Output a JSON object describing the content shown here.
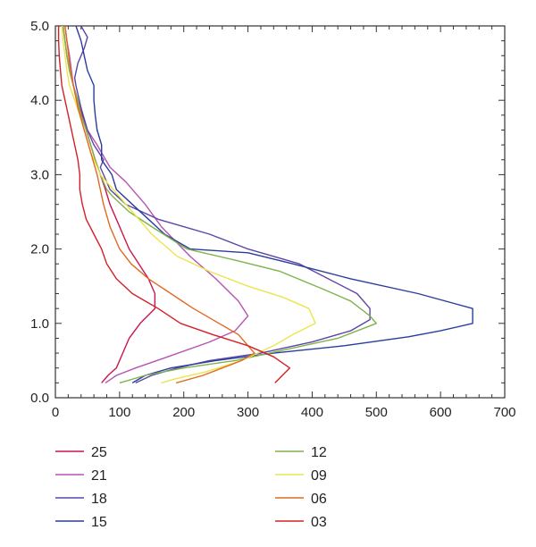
{
  "chart_data": {
    "type": "line",
    "title": "",
    "xlabel": "",
    "ylabel": "",
    "xlim": [
      0,
      700
    ],
    "ylim": [
      0,
      5
    ],
    "xticks": [
      0,
      100,
      200,
      300,
      400,
      500,
      600,
      700
    ],
    "yticks": [
      0.0,
      1.0,
      2.0,
      3.0,
      4.0,
      5.0
    ],
    "xtick_labels": [
      "0",
      "100",
      "200",
      "300",
      "400",
      "500",
      "600",
      "700"
    ],
    "ytick_labels": [
      "0.0",
      "1.0",
      "2.0",
      "3.0",
      "4.0",
      "5.0"
    ],
    "grid": false,
    "legend_position": "bottom",
    "series": [
      {
        "name": "25",
        "color": "#c8174e",
        "points": [
          [
            72,
            0.2
          ],
          [
            82,
            0.3
          ],
          [
            95,
            0.4
          ],
          [
            105,
            0.6
          ],
          [
            115,
            0.8
          ],
          [
            132,
            1.0
          ],
          [
            155,
            1.2
          ],
          [
            155,
            1.4
          ],
          [
            145,
            1.6
          ],
          [
            130,
            1.8
          ],
          [
            115,
            2.0
          ],
          [
            95,
            2.4
          ],
          [
            85,
            2.6
          ],
          [
            78,
            2.8
          ],
          [
            70,
            3.0
          ],
          [
            62,
            3.2
          ],
          [
            55,
            3.4
          ],
          [
            48,
            3.6
          ],
          [
            42,
            3.8
          ],
          [
            35,
            4.0
          ],
          [
            28,
            4.2
          ],
          [
            22,
            4.4
          ],
          [
            18,
            4.6
          ],
          [
            15,
            4.8
          ],
          [
            12,
            5.0
          ]
        ]
      },
      {
        "name": "21",
        "color": "#b653b2",
        "points": [
          [
            78,
            0.2
          ],
          [
            95,
            0.3
          ],
          [
            125,
            0.4
          ],
          [
            175,
            0.55
          ],
          [
            240,
            0.75
          ],
          [
            280,
            0.9
          ],
          [
            300,
            1.1
          ],
          [
            285,
            1.3
          ],
          [
            250,
            1.6
          ],
          [
            210,
            1.9
          ],
          [
            165,
            2.3
          ],
          [
            140,
            2.6
          ],
          [
            110,
            2.9
          ],
          [
            85,
            3.1
          ],
          [
            65,
            3.4
          ],
          [
            50,
            3.6
          ],
          [
            40,
            3.8
          ],
          [
            28,
            4.2
          ],
          [
            22,
            4.6
          ],
          [
            18,
            4.8
          ],
          [
            15,
            5.0
          ]
        ]
      },
      {
        "name": "18",
        "color": "#5c45a8",
        "points": [
          [
            125,
            0.2
          ],
          [
            150,
            0.3
          ],
          [
            190,
            0.4
          ],
          [
            240,
            0.5
          ],
          [
            320,
            0.6
          ],
          [
            400,
            0.75
          ],
          [
            460,
            0.9
          ],
          [
            490,
            1.05
          ],
          [
            490,
            1.2
          ],
          [
            470,
            1.4
          ],
          [
            380,
            1.8
          ],
          [
            300,
            2.0
          ],
          [
            240,
            2.2
          ],
          [
            160,
            2.4
          ],
          [
            110,
            2.6
          ],
          [
            85,
            2.8
          ],
          [
            75,
            3.0
          ],
          [
            70,
            3.1
          ],
          [
            75,
            3.2
          ],
          [
            60,
            3.4
          ],
          [
            50,
            3.6
          ],
          [
            40,
            3.9
          ],
          [
            32,
            4.2
          ],
          [
            30,
            4.3
          ],
          [
            35,
            4.5
          ],
          [
            45,
            4.7
          ],
          [
            50,
            4.85
          ],
          [
            40,
            5.0
          ]
        ]
      },
      {
        "name": "15",
        "color": "#2a3d9c",
        "points": [
          [
            120,
            0.2
          ],
          [
            140,
            0.3
          ],
          [
            180,
            0.4
          ],
          [
            250,
            0.5
          ],
          [
            340,
            0.6
          ],
          [
            450,
            0.7
          ],
          [
            550,
            0.82
          ],
          [
            600,
            0.9
          ],
          [
            650,
            1.0
          ],
          [
            650,
            1.2
          ],
          [
            565,
            1.4
          ],
          [
            460,
            1.6
          ],
          [
            370,
            1.8
          ],
          [
            300,
            1.95
          ],
          [
            210,
            2.0
          ],
          [
            170,
            2.2
          ],
          [
            145,
            2.4
          ],
          [
            120,
            2.6
          ],
          [
            95,
            2.8
          ],
          [
            88,
            3.0
          ],
          [
            72,
            3.2
          ],
          [
            72,
            3.4
          ],
          [
            65,
            3.6
          ],
          [
            62,
            3.8
          ],
          [
            60,
            4.0
          ],
          [
            60,
            4.2
          ],
          [
            50,
            4.4
          ],
          [
            45,
            4.6
          ],
          [
            40,
            4.8
          ],
          [
            32,
            5.0
          ]
        ]
      },
      {
        "name": "12",
        "color": "#7fb24a",
        "points": [
          [
            100,
            0.2
          ],
          [
            140,
            0.3
          ],
          [
            200,
            0.4
          ],
          [
            280,
            0.5
          ],
          [
            360,
            0.65
          ],
          [
            440,
            0.8
          ],
          [
            500,
            1.0
          ],
          [
            490,
            1.1
          ],
          [
            460,
            1.3
          ],
          [
            420,
            1.45
          ],
          [
            350,
            1.7
          ],
          [
            280,
            1.85
          ],
          [
            205,
            2.0
          ],
          [
            150,
            2.3
          ],
          [
            115,
            2.5
          ],
          [
            90,
            2.7
          ],
          [
            80,
            2.8
          ],
          [
            70,
            3.0
          ],
          [
            62,
            3.2
          ],
          [
            55,
            3.4
          ],
          [
            48,
            3.6
          ],
          [
            40,
            3.8
          ],
          [
            35,
            4.0
          ],
          [
            28,
            4.2
          ],
          [
            22,
            4.4
          ],
          [
            18,
            4.6
          ],
          [
            15,
            4.8
          ],
          [
            12,
            5.0
          ]
        ]
      },
      {
        "name": "09",
        "color": "#eae54d",
        "points": [
          [
            165,
            0.2
          ],
          [
            185,
            0.25
          ],
          [
            235,
            0.35
          ],
          [
            290,
            0.5
          ],
          [
            340,
            0.7
          ],
          [
            370,
            0.85
          ],
          [
            405,
            1.0
          ],
          [
            395,
            1.2
          ],
          [
            355,
            1.35
          ],
          [
            300,
            1.5
          ],
          [
            240,
            1.7
          ],
          [
            190,
            1.9
          ],
          [
            150,
            2.2
          ],
          [
            120,
            2.5
          ],
          [
            90,
            2.8
          ],
          [
            70,
            3.0
          ],
          [
            55,
            3.3
          ],
          [
            45,
            3.6
          ],
          [
            38,
            3.8
          ],
          [
            30,
            4.0
          ],
          [
            22,
            4.2
          ],
          [
            18,
            4.4
          ],
          [
            15,
            4.6
          ],
          [
            12,
            4.8
          ],
          [
            10,
            5.0
          ]
        ]
      },
      {
        "name": "06",
        "color": "#e06a22",
        "points": [
          [
            188,
            0.2
          ],
          [
            230,
            0.3
          ],
          [
            260,
            0.4
          ],
          [
            290,
            0.5
          ],
          [
            310,
            0.6
          ],
          [
            300,
            0.7
          ],
          [
            285,
            0.85
          ],
          [
            255,
            1.0
          ],
          [
            215,
            1.2
          ],
          [
            180,
            1.4
          ],
          [
            145,
            1.6
          ],
          [
            118,
            1.8
          ],
          [
            100,
            2.0
          ],
          [
            85,
            2.3
          ],
          [
            75,
            2.6
          ],
          [
            65,
            3.0
          ],
          [
            55,
            3.3
          ],
          [
            45,
            3.6
          ],
          [
            35,
            3.9
          ],
          [
            28,
            4.2
          ],
          [
            22,
            4.5
          ],
          [
            18,
            4.8
          ],
          [
            15,
            5.0
          ]
        ]
      },
      {
        "name": "03",
        "color": "#d42027",
        "points": [
          [
            342,
            0.2
          ],
          [
            365,
            0.4
          ],
          [
            340,
            0.55
          ],
          [
            300,
            0.7
          ],
          [
            245,
            0.85
          ],
          [
            195,
            1.0
          ],
          [
            160,
            1.2
          ],
          [
            120,
            1.4
          ],
          [
            95,
            1.6
          ],
          [
            80,
            1.8
          ],
          [
            72,
            2.0
          ],
          [
            60,
            2.2
          ],
          [
            48,
            2.4
          ],
          [
            42,
            2.6
          ],
          [
            38,
            2.8
          ],
          [
            38,
            3.0
          ],
          [
            35,
            3.2
          ],
          [
            30,
            3.4
          ],
          [
            25,
            3.6
          ],
          [
            20,
            3.8
          ],
          [
            15,
            4.0
          ],
          [
            10,
            4.2
          ],
          [
            8,
            4.4
          ],
          [
            6,
            4.6
          ],
          [
            5,
            4.8
          ],
          [
            5,
            5.0
          ]
        ]
      }
    ]
  }
}
